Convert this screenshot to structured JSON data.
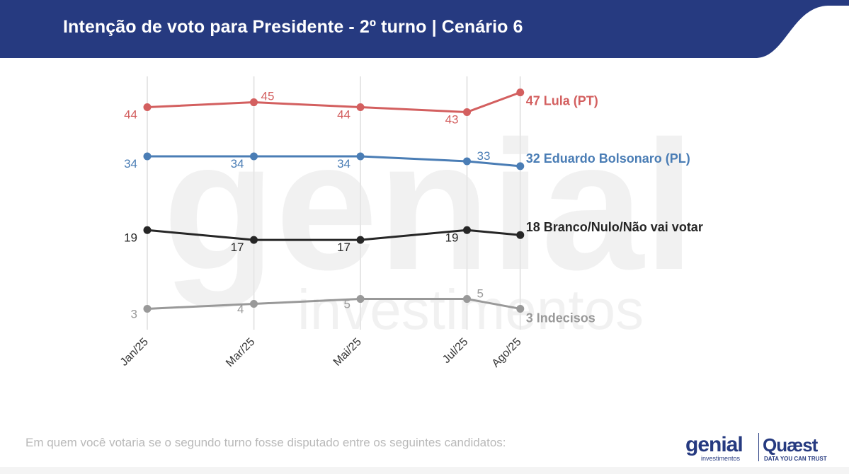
{
  "header": {
    "title": "Intenção de voto para Presidente - 2º turno | Cenário 6",
    "bg_color": "#263a80"
  },
  "chart_data": {
    "type": "line",
    "title": "Intenção de voto para Presidente - 2º turno | Cenário 6",
    "categories": [
      "Jan/25",
      "Mar/25",
      "Mai/25",
      "Jul/25",
      "Ago/25"
    ],
    "x_positions": [
      0,
      2,
      4,
      6,
      7
    ],
    "series": [
      {
        "name": "Lula (PT)",
        "values": [
          44,
          45,
          44,
          43,
          47
        ],
        "color": "#d35f5f",
        "end_label": "47 Lula (PT)"
      },
      {
        "name": "Eduardo Bolsonaro (PL)",
        "values": [
          34,
          34,
          34,
          33,
          32
        ],
        "color": "#4a7db5",
        "end_label": "32 Eduardo Bolsonaro (PL)"
      },
      {
        "name": "Branco/Nulo/Não vai votar",
        "values": [
          19,
          17,
          17,
          19,
          18
        ],
        "color": "#262626",
        "end_label": "18 Branco/Nulo/Não vai votar"
      },
      {
        "name": "Indecisos",
        "values": [
          3,
          4,
          5,
          5,
          3
        ],
        "color": "#999999",
        "end_label": "3 Indecisos"
      }
    ],
    "ylim": [
      0,
      50
    ],
    "grid": "vertical",
    "legend": "end-of-line labels"
  },
  "footer": {
    "question": "Em quem você votaria se o segundo turno fosse disputado entre os seguintes candidatos:"
  },
  "logos": {
    "genial": "genial",
    "genial_sub": "investimentos",
    "quaest": "Quæst",
    "quaest_sub": "DATA YOU CAN TRUST",
    "watermark_word": "genial",
    "watermark_sub": "investimentos"
  }
}
